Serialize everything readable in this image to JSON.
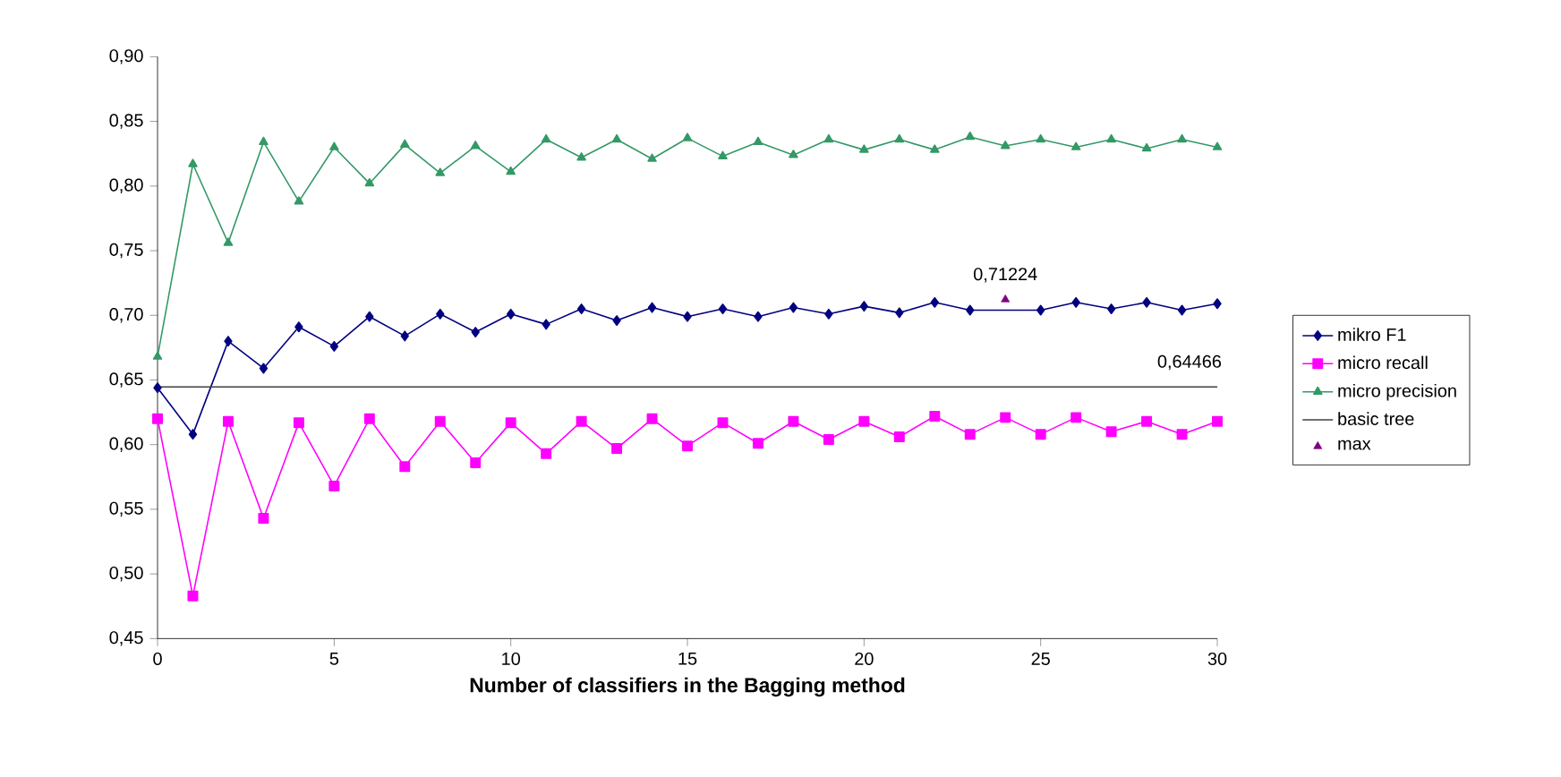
{
  "chart_data": {
    "type": "line",
    "xlabel": "Number of classifiers in the Bagging method",
    "xlim": [
      0,
      30
    ],
    "xticks": [
      0,
      5,
      10,
      15,
      20,
      25,
      30
    ],
    "ylim": [
      0.45,
      0.9
    ],
    "yticks": [
      {
        "value": 0.45,
        "label": "0,45"
      },
      {
        "value": 0.5,
        "label": "0,50"
      },
      {
        "value": 0.55,
        "label": "0,55"
      },
      {
        "value": 0.6,
        "label": "0,60"
      },
      {
        "value": 0.65,
        "label": "0,65"
      },
      {
        "value": 0.7,
        "label": "0,70"
      },
      {
        "value": 0.75,
        "label": "0,75"
      },
      {
        "value": 0.8,
        "label": "0,80"
      },
      {
        "value": 0.85,
        "label": "0,85"
      },
      {
        "value": 0.9,
        "label": "0,90"
      }
    ],
    "legend": "right",
    "grid": false,
    "x": [
      0,
      1,
      2,
      3,
      4,
      5,
      6,
      7,
      8,
      9,
      10,
      11,
      12,
      13,
      14,
      15,
      16,
      17,
      18,
      19,
      20,
      21,
      22,
      23,
      24,
      25,
      26,
      27,
      28,
      29,
      30
    ],
    "series": [
      {
        "name": "mikro F1",
        "color": "#000080",
        "marker": "diamond",
        "values": [
          0.644,
          0.608,
          0.68,
          0.659,
          0.691,
          0.676,
          0.699,
          0.684,
          0.701,
          0.687,
          0.701,
          0.693,
          0.705,
          0.696,
          0.706,
          0.699,
          0.705,
          0.699,
          0.706,
          0.701,
          0.707,
          0.702,
          0.71,
          0.704,
          null,
          0.704,
          0.71,
          0.705,
          0.71,
          0.704,
          0.709
        ]
      },
      {
        "name": "micro recall",
        "color": "#ff00ff",
        "marker": "square",
        "values": [
          0.62,
          0.483,
          0.618,
          0.543,
          0.617,
          0.568,
          0.62,
          0.583,
          0.618,
          0.586,
          0.617,
          0.593,
          0.618,
          0.597,
          0.62,
          0.599,
          0.617,
          0.601,
          0.618,
          0.604,
          0.618,
          0.606,
          0.622,
          0.608,
          0.621,
          0.608,
          0.621,
          0.61,
          0.618,
          0.608,
          0.618
        ]
      },
      {
        "name": "micro precision",
        "color": "#339966",
        "marker": "triangle",
        "values": [
          0.668,
          0.817,
          0.756,
          0.834,
          0.788,
          0.83,
          0.802,
          0.832,
          0.81,
          0.831,
          0.811,
          0.836,
          0.822,
          0.836,
          0.821,
          0.837,
          0.823,
          0.834,
          0.824,
          0.836,
          0.828,
          0.836,
          0.828,
          0.838,
          0.831,
          0.836,
          0.83,
          0.836,
          0.829,
          0.836,
          0.83
        ]
      },
      {
        "name": "basic tree",
        "color": "#404040",
        "marker": "none",
        "x": [
          0,
          30
        ],
        "values": [
          0.64466,
          0.64466
        ],
        "value_labels": [
          null,
          "0,64466"
        ]
      },
      {
        "name": "max",
        "type": "scatter",
        "color": "#800080",
        "marker": "triangle",
        "x": [
          24
        ],
        "values": [
          0.71224
        ],
        "value_labels": [
          "0,71224"
        ]
      }
    ]
  }
}
